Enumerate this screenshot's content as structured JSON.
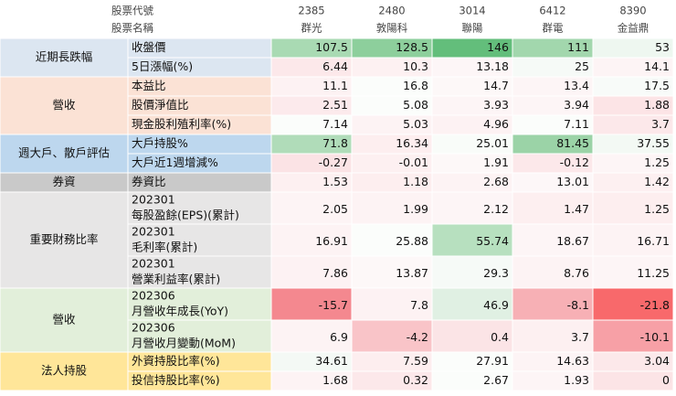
{
  "header": {
    "code_label": "股票代號",
    "name_label": "股票名稱",
    "stocks": [
      {
        "code": "2385",
        "name": "群光"
      },
      {
        "code": "2480",
        "name": "敦陽科"
      },
      {
        "code": "3014",
        "name": "聯陽"
      },
      {
        "code": "6412",
        "name": "群電"
      },
      {
        "code": "8390",
        "name": "金益鼎"
      }
    ]
  },
  "groups": [
    {
      "name": "近期長跌幅",
      "color": "#dce6f1",
      "rows": [
        {
          "label": "收盤價",
          "values": [
            107.5,
            128.5,
            146,
            111,
            53
          ],
          "colors": [
            "#a9dab3",
            "#8dcf9c",
            "#63be7b",
            "#a2d7ad",
            "#eef7f0"
          ]
        },
        {
          "label": "5日漲幅(%)",
          "values": [
            6.44,
            10.3,
            13.18,
            25,
            14.1
          ],
          "colors": [
            "#fce8ea",
            "#fdf1f2",
            "#fdf6f7",
            "#f6faf7",
            "#fdf4f5"
          ]
        }
      ]
    },
    {
      "name": "營收",
      "color": "#fbe2d5",
      "rows": [
        {
          "label": "本益比",
          "values": [
            11.1,
            16.8,
            14.7,
            13.4,
            17.5
          ],
          "colors": [
            "#fdf2f3",
            "#fbfdfb",
            "#fdf8f8",
            "#fdf5f6",
            "#f8fbf9"
          ]
        },
        {
          "label": "股價淨值比",
          "values": [
            2.51,
            5.08,
            3.93,
            3.94,
            1.88
          ],
          "colors": [
            "#fceaec",
            "#fbfdfb",
            "#fdf5f6",
            "#fdf5f6",
            "#fce4e6"
          ]
        },
        {
          "label": "現金股利殖利率(%)",
          "values": [
            7.14,
            5.03,
            4.96,
            7.11,
            3.7
          ],
          "colors": [
            "#fbfdfb",
            "#fdf3f4",
            "#fdf2f3",
            "#fbfdfb",
            "#fce8ea"
          ]
        }
      ]
    },
    {
      "name": "週大戶、散戶評估",
      "color": "#bdd7ee",
      "rows": [
        {
          "label": "大戶持股%",
          "values": [
            71.8,
            16.34,
            25.01,
            81.45,
            37.55
          ],
          "colors": [
            "#b0dcb9",
            "#fdeeef",
            "#f9fcf9",
            "#9bd3a7",
            "#f3f9f4"
          ]
        },
        {
          "label": "大戶近1週增減%",
          "values": [
            -0.27,
            -0.01,
            1.91,
            -0.12,
            1.25
          ],
          "colors": [
            "#fbe3e5",
            "#fdf0f1",
            "#fdf8f8",
            "#fce8ea",
            "#fdf5f6"
          ]
        }
      ]
    },
    {
      "name": "券資",
      "color": "#c9c9c9",
      "rows": [
        {
          "label": "券資比",
          "values": [
            1.53,
            1.18,
            2.68,
            13.01,
            1.42
          ],
          "colors": [
            "#fdf0f1",
            "#fdeeef",
            "#fdf3f4",
            "#fdf7f8",
            "#fdf0f1"
          ]
        }
      ]
    },
    {
      "name": "重要財務比率",
      "color": "#e7e6e6",
      "rows": [
        {
          "period": "202301",
          "label": "每股盈餘(EPS)(累計)",
          "values": [
            2.05,
            1.99,
            2.12,
            1.47,
            1.25
          ],
          "colors": [
            "#fdf4f5",
            "#fdf3f4",
            "#fdf5f6",
            "#fdeff0",
            "#fdeeef"
          ]
        },
        {
          "period": "202301",
          "label": "毛利率(累計)",
          "values": [
            16.91,
            25.88,
            55.74,
            18.67,
            16.71
          ],
          "colors": [
            "#fdf3f4",
            "#fbfdfb",
            "#b7e0bf",
            "#fdf5f6",
            "#fdf3f4"
          ]
        },
        {
          "period": "202301",
          "label": "營業利益率(累計)",
          "values": [
            7.86,
            13.87,
            29.3,
            8.76,
            11.25
          ],
          "colors": [
            "#fdf2f3",
            "#fdf8f8",
            "#f6faf7",
            "#fdf3f4",
            "#fdf5f6"
          ]
        }
      ]
    },
    {
      "name": "營收",
      "color": "#e2efda",
      "rows": [
        {
          "period": "202306",
          "label": "月營收年成長(YoY)",
          "values": [
            -15.7,
            7.8,
            46.9,
            -8.1,
            -21.8
          ],
          "colors": [
            "#f4888f",
            "#fdf2f3",
            "#e0f0e3",
            "#f7b0b5",
            "#f8696b"
          ]
        },
        {
          "period": "202306",
          "label": "月營收月變動(MoM)",
          "values": [
            6.9,
            -4.2,
            0.4,
            3.7,
            -10.1
          ],
          "colors": [
            "#fdf3f4",
            "#f9c4c8",
            "#fbe4e6",
            "#fdf0f1",
            "#f7a0a6"
          ]
        }
      ]
    },
    {
      "name": "法人持股",
      "color": "#ffe699",
      "rows": [
        {
          "label": "外資持股比率(%)",
          "values": [
            34.61,
            7.59,
            27.91,
            14.63,
            3.04
          ],
          "colors": [
            "#f4f9f5",
            "#fdeeef",
            "#fbfdfb",
            "#fdf4f5",
            "#fce8ea"
          ]
        },
        {
          "label": "投信持股比率(%)",
          "values": [
            1.68,
            0.32,
            2.67,
            1.93,
            0
          ],
          "colors": [
            "#fdf3f4",
            "#fce8ea",
            "#fbfdfb",
            "#fdf5f6",
            "#fce4e6"
          ]
        }
      ]
    }
  ]
}
